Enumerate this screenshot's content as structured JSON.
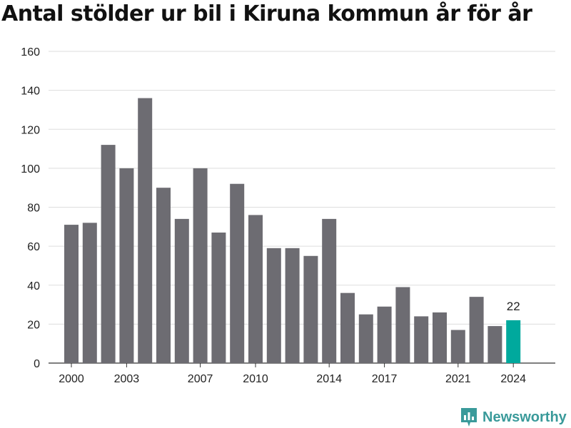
{
  "brand": {
    "name": "Newsworthy",
    "icon": "newsworthy-logo-icon",
    "color": "#3a9a9a"
  },
  "chart_data": {
    "type": "bar",
    "title": "Antal stölder ur bil i Kiruna kommun år för år",
    "xlabel": "",
    "ylabel": "",
    "categories": [
      "2000",
      "2001",
      "2002",
      "2003",
      "2004",
      "2005",
      "2006",
      "2007",
      "2008",
      "2009",
      "2010",
      "2011",
      "2012",
      "2013",
      "2014",
      "2015",
      "2016",
      "2017",
      "2018",
      "2019",
      "2020",
      "2021",
      "2022",
      "2023",
      "2024"
    ],
    "x_tick_labels": [
      "2000",
      "2003",
      "2007",
      "2010",
      "2014",
      "2017",
      "2021",
      "2024"
    ],
    "values": [
      71,
      72,
      112,
      100,
      136,
      90,
      74,
      100,
      67,
      92,
      76,
      59,
      59,
      55,
      74,
      36,
      25,
      29,
      39,
      24,
      26,
      17,
      34,
      19,
      22
    ],
    "ylim": [
      0,
      160
    ],
    "y_ticks": [
      0,
      20,
      40,
      60,
      80,
      100,
      120,
      140,
      160
    ],
    "grid": true,
    "legend": "none",
    "bar_color": "#6d6c72",
    "highlight_color": "#00a99d",
    "highlight_category": "2024",
    "annotations": [
      {
        "category": "2024",
        "text": "22"
      }
    ]
  }
}
